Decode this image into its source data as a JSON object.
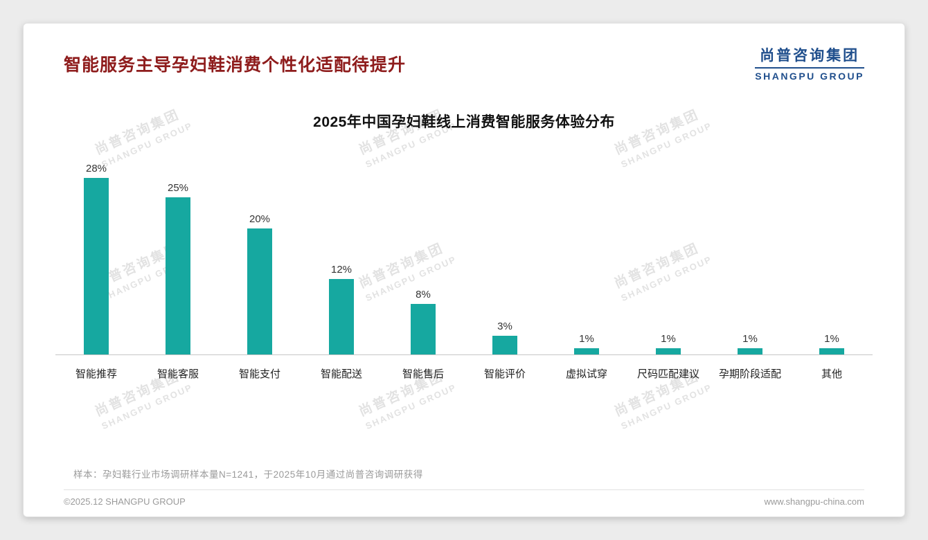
{
  "page": {
    "title": "智能服务主导孕妇鞋消费个性化适配待提升"
  },
  "logo": {
    "cn": "尚普咨询集团",
    "en": "SHANGPU GROUP"
  },
  "watermark": {
    "cn": "尚普咨询集团",
    "en": "SHANGPU GROUP"
  },
  "chart_data": {
    "type": "bar",
    "title": "2025年中国孕妇鞋线上消费智能服务体验分布",
    "categories": [
      "智能推荐",
      "智能客服",
      "智能支付",
      "智能配送",
      "智能售后",
      "智能评价",
      "虚拟试穿",
      "尺码匹配建议",
      "孕期阶段适配",
      "其他"
    ],
    "values": [
      28,
      25,
      20,
      12,
      8,
      3,
      1,
      1,
      1,
      1
    ],
    "unit": "%",
    "value_labels": true,
    "bar_color": "#16a8a0",
    "xlabel": "",
    "ylabel": "",
    "ylim": [
      0,
      30
    ],
    "grid": false,
    "legend": "none"
  },
  "footnote": "样本：孕妇鞋行业市场调研样本量N=1241，于2025年10月通过尚普咨询调研获得",
  "footer": {
    "copyright": "©2025.12 SHANGPU GROUP",
    "website": "www.shangpu-china.com"
  },
  "colors": {
    "title_red": "#8e1c1c",
    "logo_blue": "#1f4e8c",
    "bar_teal": "#16a8a0"
  }
}
